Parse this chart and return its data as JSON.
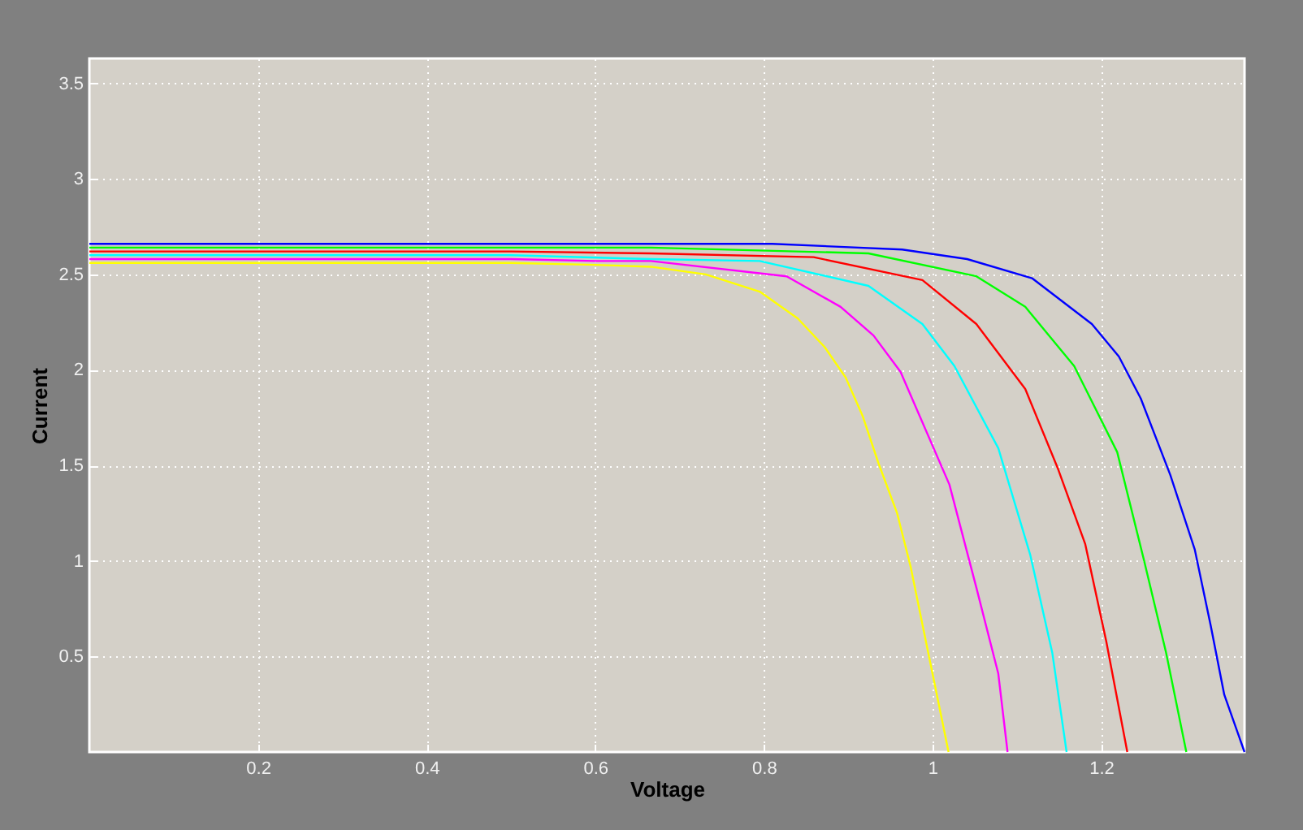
{
  "chart_data": {
    "type": "line",
    "xlabel": "Voltage",
    "ylabel": "Current",
    "xlim": [
      0,
      1.37
    ],
    "ylim": [
      0,
      3.63
    ],
    "xticks": [
      0.2,
      0.4,
      0.6,
      0.8,
      1,
      1.2
    ],
    "yticks": [
      0.5,
      1,
      1.5,
      2,
      2.5,
      3,
      3.5
    ],
    "grid": true,
    "legend": false,
    "marker": "none",
    "line_style": "solid",
    "series": [
      {
        "color": "#0000ff",
        "x": [
          0,
          0.5,
          0.81,
          0.964,
          1.041,
          1.118,
          1.189,
          1.221,
          1.247,
          1.282,
          1.311,
          1.33,
          1.346,
          1.37
        ],
        "values": [
          2.66,
          2.66,
          2.66,
          2.63,
          2.58,
          2.48,
          2.24,
          2.07,
          1.85,
          1.45,
          1.06,
          0.66,
          0.3,
          0
        ]
      },
      {
        "color": "#00ff00",
        "x": [
          0,
          0.5,
          0.666,
          0.924,
          1.052,
          1.11,
          1.168,
          1.219,
          1.251,
          1.277,
          1.301
        ],
        "values": [
          2.64,
          2.64,
          2.64,
          2.61,
          2.49,
          2.33,
          2.02,
          1.57,
          1,
          0.52,
          0
        ]
      },
      {
        "color": "#ff0000",
        "x": [
          0,
          0.5,
          0.666,
          0.859,
          0.988,
          1.052,
          1.11,
          1.149,
          1.181,
          1.206,
          1.231
        ],
        "values": [
          2.62,
          2.62,
          2.61,
          2.59,
          2.47,
          2.24,
          1.9,
          1.48,
          1.09,
          0.58,
          0
        ]
      },
      {
        "color": "#00ffff",
        "x": [
          0,
          0.5,
          0.666,
          0.795,
          0.924,
          0.988,
          1.026,
          1.078,
          1.116,
          1.142,
          1.159
        ],
        "values": [
          2.6,
          2.6,
          2.58,
          2.57,
          2.44,
          2.24,
          2.02,
          1.59,
          1.03,
          0.52,
          0
        ]
      },
      {
        "color": "#ff00ff",
        "x": [
          0,
          0.5,
          0.6,
          0.666,
          0.827,
          0.891,
          0.93,
          0.962,
          1.02,
          1.052,
          1.078,
          1.089
        ],
        "values": [
          2.58,
          2.58,
          2.57,
          2.57,
          2.49,
          2.33,
          2.18,
          1.99,
          1.4,
          0.86,
          0.41,
          0
        ]
      },
      {
        "color": "#ffff00",
        "x": [
          0,
          0.5,
          0.6,
          0.666,
          0.731,
          0.795,
          0.84,
          0.872,
          0.897,
          0.917,
          0.936,
          0.958,
          0.974,
          0.987,
          1,
          1.019
        ],
        "values": [
          2.56,
          2.56,
          2.55,
          2.54,
          2.5,
          2.41,
          2.27,
          2.12,
          1.96,
          1.76,
          1.51,
          1.25,
          0.97,
          0.69,
          0.41,
          0
        ]
      }
    ]
  }
}
